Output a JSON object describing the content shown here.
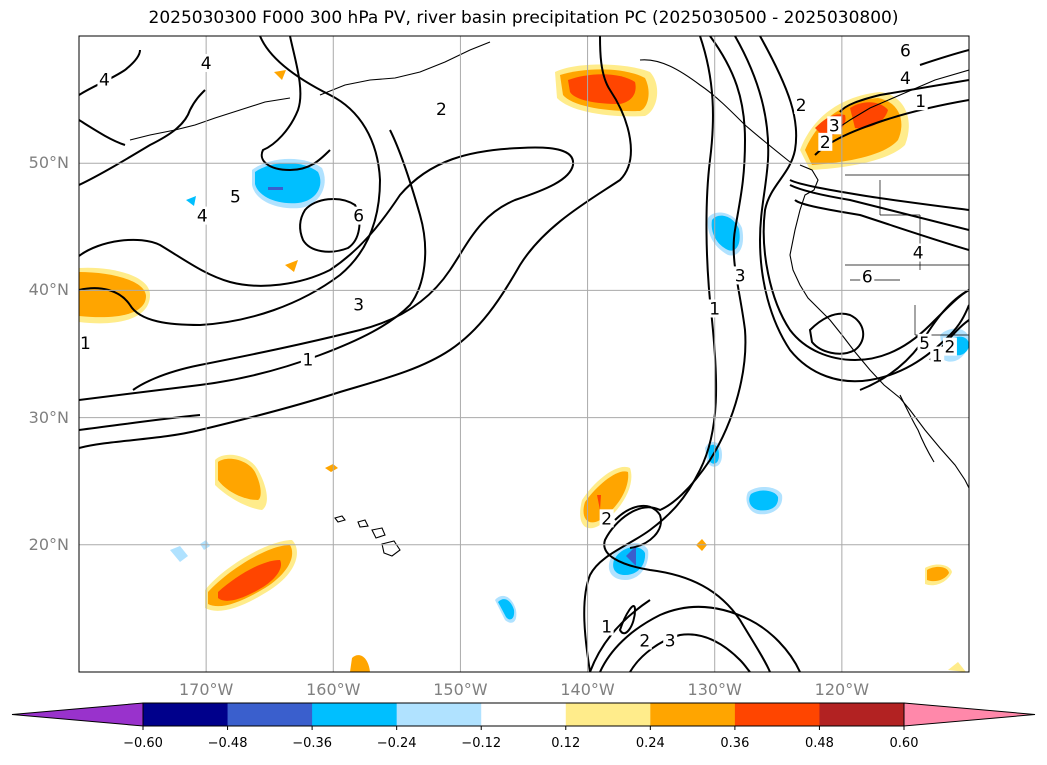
{
  "title": "2025030300 F000 300 hPa PV, river basin precipitation PC (2025030500 - 2025030800)",
  "map": {
    "lon_range": [
      -180,
      -110
    ],
    "lat_range": [
      10,
      60
    ],
    "lat_ticks": [
      {
        "value": 50,
        "label": "50°N"
      },
      {
        "value": 40,
        "label": "40°N"
      },
      {
        "value": 30,
        "label": "30°N"
      },
      {
        "value": 20,
        "label": "20°N"
      }
    ],
    "lon_ticks": [
      {
        "value": -170,
        "label": "170°W"
      },
      {
        "value": -160,
        "label": "160°W"
      },
      {
        "value": -150,
        "label": "150°W"
      },
      {
        "value": -140,
        "label": "140°W"
      },
      {
        "value": -130,
        "label": "130°W"
      },
      {
        "value": -120,
        "label": "120°W"
      }
    ],
    "gridlines": true,
    "contour_labels": [
      {
        "text": "4",
        "lon": -178,
        "lat": 56.5
      },
      {
        "text": "4",
        "lon": -170,
        "lat": 57.8
      },
      {
        "text": "2",
        "lon": -151.5,
        "lat": 54.2
      },
      {
        "text": "5",
        "lon": -167.7,
        "lat": 47.3
      },
      {
        "text": "4",
        "lon": -170.3,
        "lat": 45.8
      },
      {
        "text": "6",
        "lon": -158,
        "lat": 45.8
      },
      {
        "text": "3",
        "lon": -158,
        "lat": 38.8
      },
      {
        "text": "1",
        "lon": -162,
        "lat": 34.5
      },
      {
        "text": "1",
        "lon": -179.5,
        "lat": 35.8
      },
      {
        "text": "6",
        "lon": -115,
        "lat": 58.8
      },
      {
        "text": "4",
        "lon": -115,
        "lat": 56.6
      },
      {
        "text": "1",
        "lon": -113.8,
        "lat": 54.8
      },
      {
        "text": "2",
        "lon": -123.2,
        "lat": 54.5
      },
      {
        "text": "3",
        "lon": -120.6,
        "lat": 52.9
      },
      {
        "text": "2",
        "lon": -121.3,
        "lat": 51.6
      },
      {
        "text": "4",
        "lon": -114,
        "lat": 42.9
      },
      {
        "text": "6",
        "lon": -118,
        "lat": 41
      },
      {
        "text": "3",
        "lon": -128,
        "lat": 41.1
      },
      {
        "text": "1",
        "lon": -130,
        "lat": 38.5
      },
      {
        "text": "5",
        "lon": -113.5,
        "lat": 35.8
      },
      {
        "text": "2",
        "lon": -111.5,
        "lat": 35.5
      },
      {
        "text": "1",
        "lon": -112.5,
        "lat": 34.8
      },
      {
        "text": "2",
        "lon": -138.5,
        "lat": 22
      },
      {
        "text": "1",
        "lon": -138.5,
        "lat": 13.5
      },
      {
        "text": "2",
        "lon": -135.5,
        "lat": 12.4
      },
      {
        "text": "3",
        "lon": -133.5,
        "lat": 12.4
      }
    ]
  },
  "colorbar": {
    "ticks": [
      "−0.60",
      "−0.48",
      "−0.36",
      "−0.24",
      "−0.12",
      "0.12",
      "0.24",
      "0.36",
      "0.48",
      "0.60"
    ],
    "colors": [
      "#9932cc",
      "#00008b",
      "#3a5fcd",
      "#00bfff",
      "#b0e2ff",
      "#ffffff",
      "#ffec8b",
      "#ffa500",
      "#ff4500",
      "#b22222",
      "#ff88aa"
    ]
  }
}
